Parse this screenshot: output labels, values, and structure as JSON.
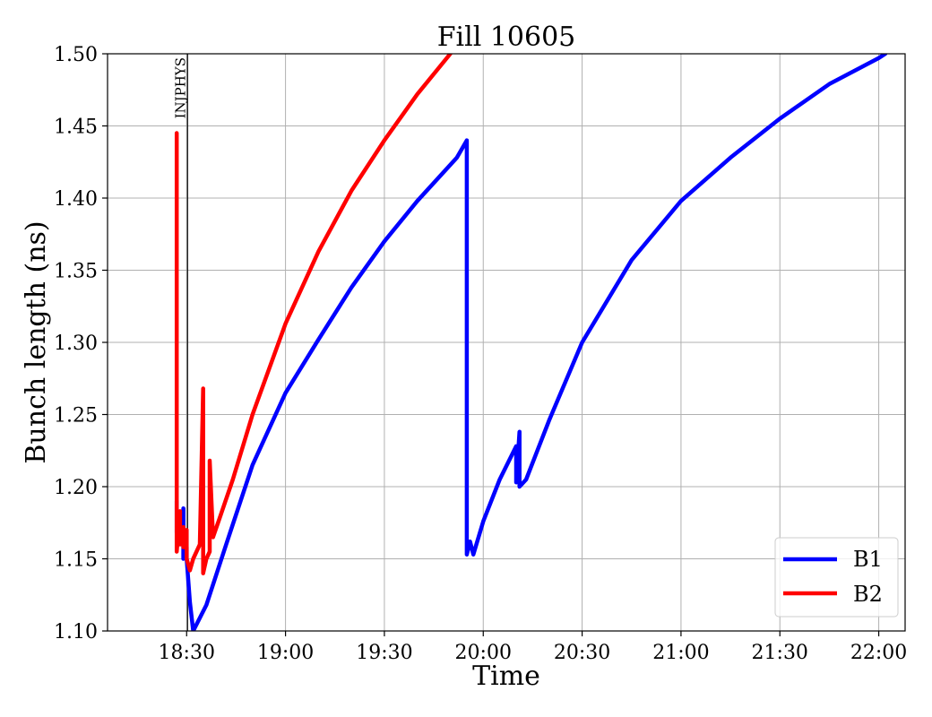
{
  "chart_data": {
    "type": "line",
    "title": "Fill 10605",
    "xlabel": "Time",
    "ylabel": "Bunch length (ns)",
    "grid": true,
    "legend_position": "bottom-right",
    "xlim": [
      "18:06",
      "22:08"
    ],
    "ylim": [
      1.1,
      1.5
    ],
    "x_ticks": [
      "18:30",
      "19:00",
      "19:30",
      "20:00",
      "20:30",
      "21:00",
      "21:30",
      "22:00"
    ],
    "y_ticks": [
      "1.10",
      "1.15",
      "1.20",
      "1.25",
      "1.30",
      "1.35",
      "1.40",
      "1.45",
      "1.50"
    ],
    "annotations": [
      {
        "text": "INJPHYS",
        "x": "18:30"
      }
    ],
    "series": [
      {
        "name": "B1",
        "color": "#0000ff",
        "points": [
          [
            "18:27",
            1.172
          ],
          [
            "18:27",
            1.19
          ],
          [
            "18:27",
            1.168
          ],
          [
            "18:28",
            1.178
          ],
          [
            "18:28",
            1.16
          ],
          [
            "18:29",
            1.175
          ],
          [
            "18:29",
            1.185
          ],
          [
            "18:29",
            1.15
          ],
          [
            "18:30",
            1.158
          ],
          [
            "18:30",
            1.15
          ],
          [
            "18:31",
            1.12
          ],
          [
            "18:32",
            1.1
          ],
          [
            "18:36",
            1.118
          ],
          [
            "18:42",
            1.16
          ],
          [
            "18:50",
            1.215
          ],
          [
            "19:00",
            1.265
          ],
          [
            "19:10",
            1.302
          ],
          [
            "19:20",
            1.338
          ],
          [
            "19:30",
            1.37
          ],
          [
            "19:40",
            1.398
          ],
          [
            "19:52",
            1.428
          ],
          [
            "19:55",
            1.44
          ],
          [
            "19:55",
            1.153
          ],
          [
            "19:56",
            1.162
          ],
          [
            "19:57",
            1.153
          ],
          [
            "20:00",
            1.176
          ],
          [
            "20:05",
            1.205
          ],
          [
            "20:10",
            1.228
          ],
          [
            "20:10",
            1.203
          ],
          [
            "20:11",
            1.238
          ],
          [
            "20:11",
            1.2
          ],
          [
            "20:13",
            1.205
          ],
          [
            "20:20",
            1.246
          ],
          [
            "20:30",
            1.3
          ],
          [
            "20:45",
            1.357
          ],
          [
            "21:00",
            1.398
          ],
          [
            "21:15",
            1.428
          ],
          [
            "21:30",
            1.455
          ],
          [
            "21:45",
            1.479
          ],
          [
            "22:00",
            1.497
          ],
          [
            "22:02",
            1.5
          ]
        ]
      },
      {
        "name": "B2",
        "color": "#ff0000",
        "points": [
          [
            "18:27",
            1.175
          ],
          [
            "18:27",
            1.445
          ],
          [
            "18:27",
            1.155
          ],
          [
            "18:28",
            1.183
          ],
          [
            "18:28",
            1.16
          ],
          [
            "18:29",
            1.172
          ],
          [
            "18:29",
            1.158
          ],
          [
            "18:30",
            1.17
          ],
          [
            "18:30",
            1.15
          ],
          [
            "18:31",
            1.142
          ],
          [
            "18:32",
            1.15
          ],
          [
            "18:34",
            1.16
          ],
          [
            "18:35",
            1.268
          ],
          [
            "18:35",
            1.14
          ],
          [
            "18:36",
            1.15
          ],
          [
            "18:37",
            1.155
          ],
          [
            "18:37",
            1.218
          ],
          [
            "18:38",
            1.165
          ],
          [
            "18:40",
            1.178
          ],
          [
            "18:44",
            1.205
          ],
          [
            "18:50",
            1.25
          ],
          [
            "19:00",
            1.313
          ],
          [
            "19:10",
            1.363
          ],
          [
            "19:20",
            1.405
          ],
          [
            "19:30",
            1.44
          ],
          [
            "19:40",
            1.472
          ],
          [
            "19:50",
            1.5
          ]
        ]
      }
    ]
  }
}
